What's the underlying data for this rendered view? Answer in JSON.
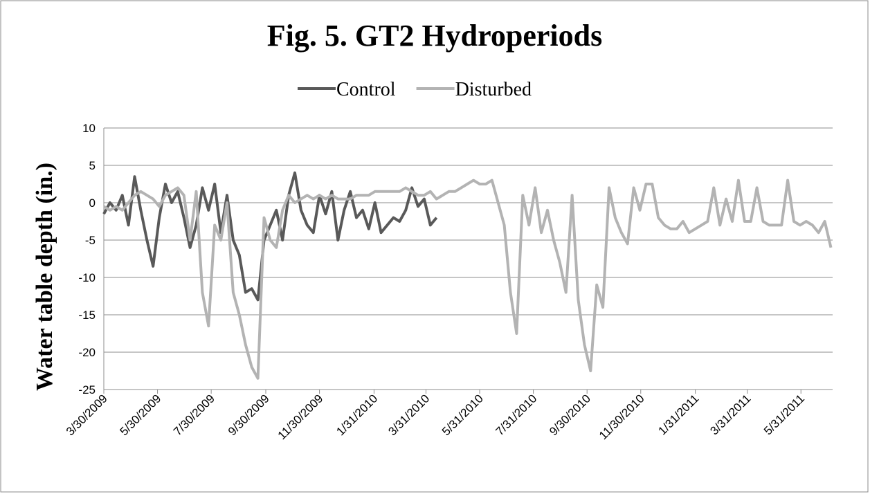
{
  "chart_data": {
    "type": "line",
    "title": "Fig. 5. GT2 Hydroperiods",
    "y_label": "Water table depth (in.)",
    "legend": "top",
    "grid": true,
    "x": [
      "2009-03-30",
      "2009-04-06",
      "2009-04-13",
      "2009-04-20",
      "2009-04-27",
      "2009-05-04",
      "2009-05-11",
      "2009-05-18",
      "2009-05-25",
      "2009-06-01",
      "2009-06-08",
      "2009-06-15",
      "2009-06-22",
      "2009-06-29",
      "2009-07-06",
      "2009-07-13",
      "2009-07-20",
      "2009-07-27",
      "2009-08-03",
      "2009-08-10",
      "2009-08-17",
      "2009-08-24",
      "2009-08-31",
      "2009-09-07",
      "2009-09-14",
      "2009-09-21",
      "2009-09-28",
      "2009-10-05",
      "2009-10-12",
      "2009-10-19",
      "2009-10-26",
      "2009-11-02",
      "2009-11-09",
      "2009-11-16",
      "2009-11-23",
      "2009-11-30",
      "2009-12-07",
      "2009-12-14",
      "2009-12-21",
      "2009-12-28",
      "2010-01-04",
      "2010-01-11",
      "2010-01-18",
      "2010-01-25",
      "2010-02-01",
      "2010-02-08",
      "2010-02-15",
      "2010-02-22",
      "2010-03-01",
      "2010-03-08",
      "2010-03-15",
      "2010-03-22",
      "2010-03-29",
      "2010-04-05",
      "2010-04-12",
      "2010-04-19",
      "2010-04-26",
      "2010-05-03",
      "2010-05-10",
      "2010-05-17",
      "2010-05-24",
      "2010-05-31",
      "2010-06-07",
      "2010-06-14",
      "2010-06-21",
      "2010-06-28",
      "2010-07-05",
      "2010-07-12",
      "2010-07-19",
      "2010-07-26",
      "2010-08-02",
      "2010-08-09",
      "2010-08-16",
      "2010-08-23",
      "2010-08-30",
      "2010-09-06",
      "2010-09-13",
      "2010-09-20",
      "2010-09-27",
      "2010-10-04",
      "2010-10-11",
      "2010-10-18",
      "2010-10-25",
      "2010-11-01",
      "2010-11-08",
      "2010-11-15",
      "2010-11-22",
      "2010-11-29",
      "2010-12-06",
      "2010-12-13",
      "2010-12-20",
      "2010-12-27",
      "2011-01-03",
      "2011-01-10",
      "2011-01-17",
      "2011-01-24",
      "2011-01-31",
      "2011-02-07",
      "2011-02-14",
      "2011-02-21",
      "2011-02-28",
      "2011-03-07",
      "2011-03-14",
      "2011-03-21",
      "2011-03-28",
      "2011-04-04",
      "2011-04-11",
      "2011-04-18",
      "2011-04-25",
      "2011-05-02",
      "2011-05-09",
      "2011-05-16",
      "2011-05-23",
      "2011-05-30",
      "2011-06-06",
      "2011-06-13",
      "2011-06-20",
      "2011-06-27",
      "2011-07-04"
    ],
    "series": [
      {
        "name": "Control",
        "color": "#595959",
        "values": [
          -1.5,
          0,
          -1,
          1,
          -3,
          3.5,
          -1,
          -5,
          -8.5,
          -2,
          2.5,
          0,
          1.5,
          -2,
          -6,
          -3,
          2,
          -1,
          2.5,
          -4,
          1,
          -5,
          -7,
          -12,
          -11.5,
          -13,
          -5,
          -3,
          -1,
          -5,
          1,
          4,
          -1,
          -3,
          -4,
          1,
          -1.5,
          1.5,
          -5,
          -1,
          1.5,
          -2,
          -1,
          -3.5,
          0,
          -4,
          -3,
          -2,
          -2.5,
          -1,
          2,
          -0.5,
          0.5,
          -3,
          -2,
          null,
          null,
          null,
          null,
          null,
          null,
          null,
          null,
          null,
          null,
          null,
          null,
          null,
          null,
          null,
          null,
          null,
          null,
          null,
          null,
          null,
          null,
          null,
          null,
          null,
          null,
          null,
          null,
          null,
          null,
          null,
          null,
          null,
          null,
          null,
          null,
          null,
          null,
          null,
          null,
          null,
          null,
          null,
          null,
          null,
          null,
          null,
          null,
          null,
          null,
          null,
          null,
          null,
          null,
          null,
          null,
          null,
          null,
          null,
          null,
          null,
          null,
          null,
          null
        ]
      },
      {
        "name": "Disturbed",
        "color": "#b3b3b3",
        "values": [
          -0.5,
          -1,
          -0.5,
          -1,
          0,
          1,
          1.5,
          1,
          0.5,
          -0.5,
          1,
          1.5,
          2,
          1,
          -5,
          1.5,
          -12,
          -16.5,
          -3,
          -5,
          0,
          -12,
          -15,
          -19,
          -22,
          -23.5,
          -2,
          -5,
          -6,
          -1,
          1,
          0,
          0.5,
          1,
          0.5,
          1,
          0.5,
          1,
          0.5,
          0.5,
          0.5,
          1,
          1,
          1,
          1.5,
          1.5,
          1.5,
          1.5,
          1.5,
          2,
          1.5,
          1,
          1,
          1.5,
          0.5,
          1,
          1.5,
          1.5,
          2,
          2.5,
          3,
          2.5,
          2.5,
          3,
          0,
          -3,
          -12,
          -17.5,
          1,
          -3,
          2,
          -4,
          -1,
          -5,
          -8,
          -12,
          1,
          -13,
          -19,
          -22.5,
          -11,
          -14,
          2,
          -2,
          -4,
          -5.5,
          2,
          -1,
          2.5,
          2.5,
          -2,
          -3,
          -3.5,
          -3.5,
          -2.5,
          -4,
          -3.5,
          -3,
          -2.5,
          2,
          -3,
          0.5,
          -2.5,
          3,
          -2.5,
          -2.5,
          2,
          -2.5,
          -3,
          -3,
          -3,
          3,
          -2.5,
          -3,
          -2.5,
          -3,
          -4,
          -2.5,
          -6
        ]
      }
    ],
    "xlim": [
      "2009-03-30",
      "2011-07-06"
    ],
    "xticks": [
      {
        "value": "2009-03-30",
        "label": "3/30/2009"
      },
      {
        "value": "2009-05-30",
        "label": "5/30/2009"
      },
      {
        "value": "2009-07-30",
        "label": "7/30/2009"
      },
      {
        "value": "2009-09-30",
        "label": "9/30/2009"
      },
      {
        "value": "2009-11-30",
        "label": "11/30/2009"
      },
      {
        "value": "2010-01-31",
        "label": "1/31/2010"
      },
      {
        "value": "2010-03-31",
        "label": "3/31/2010"
      },
      {
        "value": "2010-05-31",
        "label": "5/31/2010"
      },
      {
        "value": "2010-07-31",
        "label": "7/31/2010"
      },
      {
        "value": "2010-09-30",
        "label": "9/30/2010"
      },
      {
        "value": "2010-11-30",
        "label": "11/30/2010"
      },
      {
        "value": "2011-01-31",
        "label": "1/31/2011"
      },
      {
        "value": "2011-03-31",
        "label": "3/31/2011"
      },
      {
        "value": "2011-05-31",
        "label": "5/31/2011"
      }
    ],
    "ylim": [
      -25,
      10
    ],
    "yticks": [
      10,
      5,
      0,
      -5,
      -10,
      -15,
      -20,
      -25
    ]
  }
}
